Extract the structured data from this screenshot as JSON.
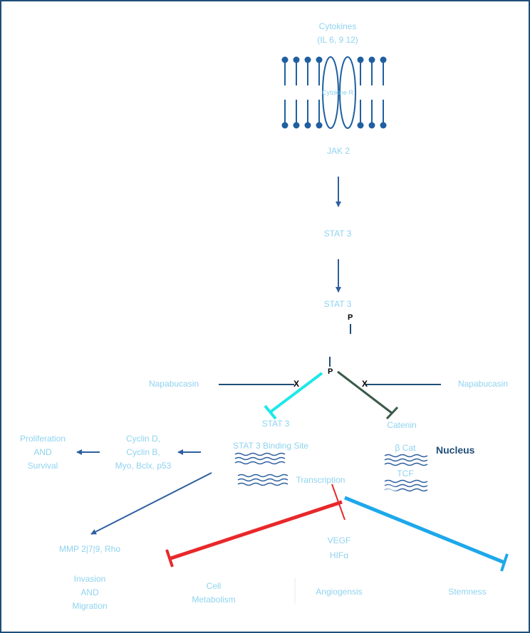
{
  "cytokines": {
    "line1": "Cytokines",
    "line2": "(IL    6, 9    12)"
  },
  "receptor_label": "Cytokine R",
  "jak2": "JAK 2",
  "stat3_a": "STAT 3",
  "stat3_b": "STAT 3",
  "phospho_p": "P",
  "phospho_p2": "P",
  "napabucasin_left": "Napabucasin",
  "napabucasin_right": "Napabucasin",
  "inhibit_mark_left": "X",
  "inhibit_mark_right": "X",
  "stat3_c": "STAT 3",
  "catenin": "Catenin",
  "stat3_binding_site": "STAT 3 Binding Site",
  "transcription": "Transcription",
  "beta_cat": "β  Cat",
  "tcf": "TCF",
  "nucleus": "Nucleus",
  "cyclins": {
    "line1": "Cyclin D,",
    "line2": "Cyclin B,",
    "line3": "Myo, Bclx, p53"
  },
  "proliferation": {
    "line1": "Proliferation",
    "line2": "AND",
    "line3": "Survival"
  },
  "mmp": "MMP 2|7|9, Rho",
  "invasion": {
    "line1": "Invasion",
    "line2": "AND",
    "line3": "Migration"
  },
  "vegf": "VEGF",
  "hif": "HIFα",
  "cell_metabolism": {
    "line1": "Cell",
    "line2": "Metabolism"
  },
  "angiogenesis": "Angiogensis",
  "stemness": "Stemness",
  "colors": {
    "frame": "#1f4e79",
    "arrow": "#2e5fa0",
    "text": "#8fd3ef",
    "red": "#e8282b",
    "blue": "#1ea8ea",
    "cyan": "#1ee8e8",
    "green": "#3a5a48"
  }
}
